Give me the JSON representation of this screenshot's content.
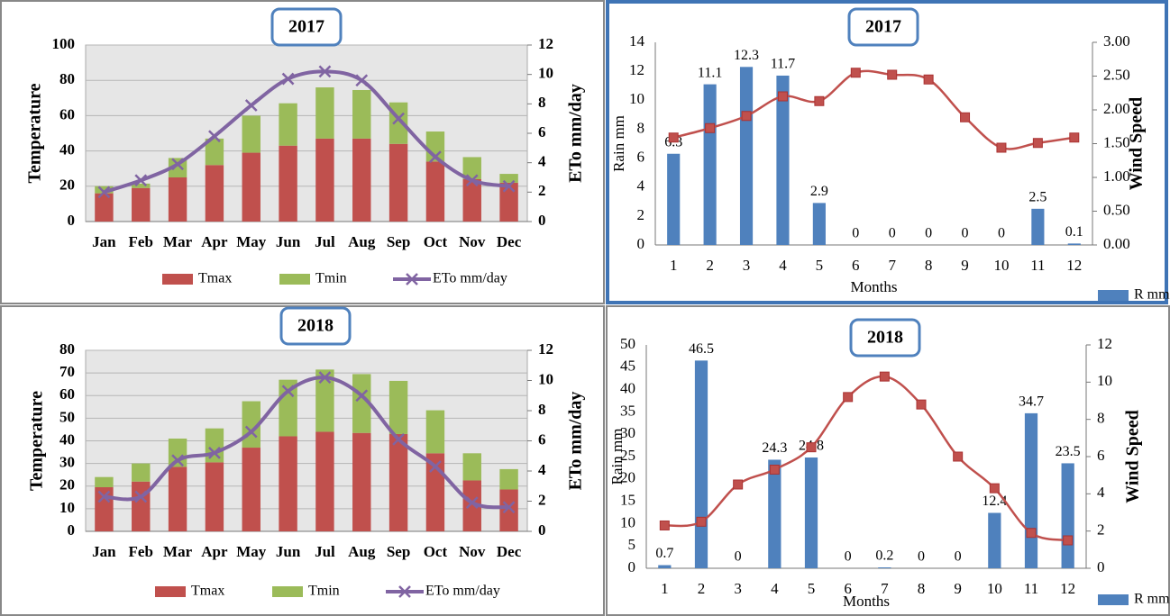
{
  "chart_data": [
    {
      "type": "bar",
      "title": "2017",
      "stacked": true,
      "grid": true,
      "categories": [
        "Jan",
        "Feb",
        "Mar",
        "Apr",
        "May",
        "Jun",
        "Jul",
        "Aug",
        "Sep",
        "Oct",
        "Nov",
        "Dec"
      ],
      "y_label": "Temperature",
      "y2_label": "ETo mm/day",
      "ylim": [
        0,
        100
      ],
      "yticks": [
        0,
        20,
        40,
        60,
        80,
        100
      ],
      "y2lim": [
        0,
        12
      ],
      "y2ticks": [
        0,
        2,
        4,
        6,
        8,
        10,
        12
      ],
      "series": [
        {
          "name": "Tmax",
          "type": "bar",
          "color": "#c0504d",
          "values": [
            16,
            19,
            25,
            32,
            39,
            43,
            47,
            47,
            44,
            34,
            24,
            22
          ]
        },
        {
          "name": "Tmin",
          "type": "bar",
          "color": "#9bbb59",
          "values": [
            4,
            2.5,
            11,
            15,
            21,
            24,
            29,
            27.5,
            23.5,
            17,
            12.5,
            5
          ]
        },
        {
          "name": "ETo mm/day",
          "type": "line",
          "axis": "y2",
          "marker": "x",
          "color": "#8064a2",
          "values": [
            2,
            2.8,
            3.9,
            5.8,
            7.9,
            9.7,
            10.2,
            9.6,
            7.0,
            4.4,
            2.8,
            2.4
          ]
        }
      ]
    },
    {
      "type": "bar",
      "title": "2017",
      "data_labels": true,
      "categories": [
        "1",
        "2",
        "3",
        "4",
        "5",
        "6",
        "7",
        "8",
        "9",
        "10",
        "11",
        "12"
      ],
      "x_label": "Months",
      "y_label": "Rain mm",
      "y2_label": "Wind Speed",
      "ylim": [
        0,
        14
      ],
      "yticks": [
        0,
        2,
        4,
        6,
        8,
        10,
        12,
        14
      ],
      "y2lim": [
        0,
        3
      ],
      "y2ticks": [
        {
          "value": 0,
          "label": "0.00"
        },
        {
          "value": 0.5,
          "label": "0.50"
        },
        {
          "value": 1,
          "label": "1.00"
        },
        {
          "value": 1.5,
          "label": "1.50"
        },
        {
          "value": 2,
          "label": "2.00"
        },
        {
          "value": 2.5,
          "label": "2.50"
        },
        {
          "value": 3,
          "label": "3.00"
        }
      ],
      "series": [
        {
          "name": "R mm",
          "type": "bar",
          "color": "#4f81bd",
          "values": [
            6.3,
            11.1,
            12.3,
            11.7,
            2.9,
            0,
            0,
            0,
            0,
            0,
            2.5,
            0.1
          ]
        },
        {
          "type": "line",
          "axis": "y2",
          "marker": "square",
          "color": "#c0504d",
          "values": [
            1.59,
            1.73,
            1.91,
            2.2,
            2.13,
            2.55,
            2.52,
            2.45,
            1.89,
            1.44,
            1.51,
            1.59
          ]
        }
      ]
    },
    {
      "type": "bar",
      "title": "2018",
      "stacked": true,
      "grid": true,
      "categories": [
        "Jan",
        "Feb",
        "Mar",
        "Apr",
        "May",
        "Jun",
        "Jul",
        "Aug",
        "Sep",
        "Oct",
        "Nov",
        "Dec"
      ],
      "y_label": "Temperature",
      "y2_label": "ETo mm/day",
      "ylim": [
        0,
        80
      ],
      "yticks": [
        0,
        10,
        20,
        30,
        40,
        50,
        60,
        70,
        80
      ],
      "y2lim": [
        0,
        12
      ],
      "y2ticks": [
        0,
        2,
        4,
        6,
        8,
        10,
        12
      ],
      "series": [
        {
          "name": "Tmax",
          "type": "bar",
          "color": "#c0504d",
          "values": [
            19.5,
            22,
            28.5,
            30.5,
            37,
            42,
            44,
            43.5,
            43,
            34.5,
            22.5,
            18.5
          ]
        },
        {
          "name": "Tmin",
          "type": "bar",
          "color": "#9bbb59",
          "values": [
            4.5,
            8,
            12.5,
            15,
            20.5,
            25,
            27.5,
            26,
            23.5,
            19,
            12,
            9
          ]
        },
        {
          "name": "ETo mm/day",
          "type": "line",
          "axis": "y2",
          "marker": "x",
          "color": "#8064a2",
          "values": [
            2.3,
            2.3,
            4.7,
            5.2,
            6.6,
            9.3,
            10.2,
            9.0,
            6.1,
            4.3,
            1.9,
            1.6
          ]
        }
      ]
    },
    {
      "type": "bar",
      "title": "2018",
      "data_labels": true,
      "categories": [
        "1",
        "2",
        "3",
        "4",
        "5",
        "6",
        "7",
        "8",
        "9",
        "10",
        "11",
        "12"
      ],
      "x_label": "Months",
      "y_label": "Rain mm",
      "y2_label": "Wind Speed",
      "ylim": [
        0,
        50
      ],
      "yticks": [
        0,
        5,
        10,
        15,
        20,
        25,
        30,
        35,
        40,
        45,
        50
      ],
      "y2lim": [
        0,
        12
      ],
      "y2ticks": [
        0,
        2,
        4,
        6,
        8,
        10,
        12
      ],
      "series": [
        {
          "name": "R mm",
          "type": "bar",
          "color": "#4f81bd",
          "values": [
            0.7,
            46.5,
            0,
            24.3,
            24.8,
            0,
            0.2,
            0,
            0,
            12.4,
            34.7,
            23.5
          ]
        },
        {
          "type": "line",
          "axis": "y2",
          "marker": "square",
          "color": "#c0504d",
          "values": [
            2.3,
            2.5,
            4.5,
            5.3,
            6.5,
            9.2,
            10.3,
            8.8,
            6.0,
            4.3,
            1.9,
            1.5
          ]
        }
      ]
    }
  ]
}
